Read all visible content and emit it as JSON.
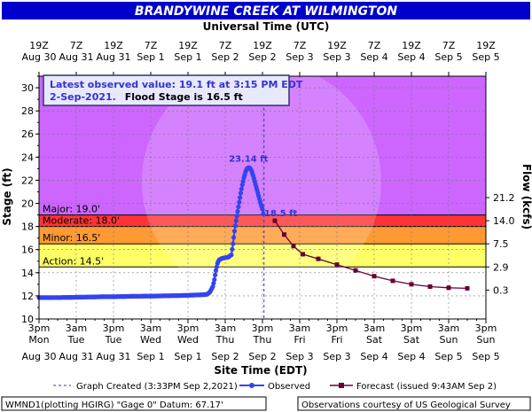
{
  "header": {
    "title": "BRANDYWINE CREEK AT WILMINGTON",
    "top_axis_title": "Universal Time (UTC)"
  },
  "info_box": {
    "line1": "Latest observed value: 19.1 ft at 3:15 PM EDT",
    "line2_date": "2-Sep-2021.",
    "line2_flood": "Flood Stage is 16.5 ft"
  },
  "colors": {
    "title_bg": "#0000cc",
    "major": "#cc66ff",
    "moderate": "#ff3333",
    "minor": "#ff9933",
    "action": "#ffff66",
    "normal": "#ffffff",
    "observed": "#3344ee",
    "forecast": "#660033",
    "info_text": "#3333cc"
  },
  "chart_data": {
    "type": "line",
    "title": "BRANDYWINE CREEK AT WILMINGTON",
    "ylabel": "Stage (ft)",
    "y2label": "Flow (kcfs)",
    "xlabel": "Site Time (EDT)",
    "top_xlabel": "Universal Time (UTC)",
    "ylim": [
      10,
      31
    ],
    "yticks": [
      10,
      12,
      14,
      16,
      18,
      20,
      22,
      24,
      26,
      28,
      30
    ],
    "y2ticks": [
      {
        "stage": 12.5,
        "label": "0.3"
      },
      {
        "stage": 14.5,
        "label": "2.9"
      },
      {
        "stage": 16.5,
        "label": "7.5"
      },
      {
        "stage": 18.5,
        "label": "14.0"
      },
      {
        "stage": 20.5,
        "label": "21.2"
      }
    ],
    "xlim_hours": [
      0,
      144
    ],
    "x_ticks_bottom": [
      {
        "h": 0,
        "top": "3pm",
        "mid": "Mon",
        "bot": "Aug 30"
      },
      {
        "h": 12,
        "top": "3am",
        "mid": "Tue",
        "bot": "Aug 31"
      },
      {
        "h": 24,
        "top": "3pm",
        "mid": "Tue",
        "bot": "Aug 31"
      },
      {
        "h": 36,
        "top": "3am",
        "mid": "Wed",
        "bot": "Sep 1"
      },
      {
        "h": 48,
        "top": "3pm",
        "mid": "Wed",
        "bot": "Sep 1"
      },
      {
        "h": 60,
        "top": "3am",
        "mid": "Thu",
        "bot": "Sep 2"
      },
      {
        "h": 72,
        "top": "3pm",
        "mid": "Thu",
        "bot": "Sep 2"
      },
      {
        "h": 84,
        "top": "3am",
        "mid": "Fri",
        "bot": "Sep 3"
      },
      {
        "h": 96,
        "top": "3pm",
        "mid": "Fri",
        "bot": "Sep 3"
      },
      {
        "h": 108,
        "top": "3am",
        "mid": "Sat",
        "bot": "Sep 4"
      },
      {
        "h": 120,
        "top": "3pm",
        "mid": "Sat",
        "bot": "Sep 4"
      },
      {
        "h": 132,
        "top": "3am",
        "mid": "Sun",
        "bot": "Sep 5"
      },
      {
        "h": 144,
        "top": "3pm",
        "mid": "Sun",
        "bot": "Sep 5"
      }
    ],
    "x_ticks_top": [
      {
        "h": 0,
        "top": "19Z",
        "bot": "Aug 30"
      },
      {
        "h": 12,
        "top": "7Z",
        "bot": "Aug 31"
      },
      {
        "h": 24,
        "top": "19Z",
        "bot": "Aug 31"
      },
      {
        "h": 36,
        "top": "7Z",
        "bot": "Sep 1"
      },
      {
        "h": 48,
        "top": "19Z",
        "bot": "Sep 1"
      },
      {
        "h": 60,
        "top": "7Z",
        "bot": "Sep 2"
      },
      {
        "h": 72,
        "top": "19Z",
        "bot": "Sep 2"
      },
      {
        "h": 84,
        "top": "7Z",
        "bot": "Sep 3"
      },
      {
        "h": 96,
        "top": "19Z",
        "bot": "Sep 3"
      },
      {
        "h": 108,
        "top": "7Z",
        "bot": "Sep 4"
      },
      {
        "h": 120,
        "top": "19Z",
        "bot": "Sep 4"
      },
      {
        "h": 132,
        "top": "7Z",
        "bot": "Sep 5"
      },
      {
        "h": 144,
        "top": "19Z",
        "bot": "Sep 5"
      }
    ],
    "flood_categories": [
      {
        "name": "major",
        "label": "Major: 19.0'",
        "stage": 19.0
      },
      {
        "name": "moderate",
        "label": "Moderate: 18.0'",
        "stage": 18.0
      },
      {
        "name": "minor",
        "label": "Minor: 16.5'",
        "stage": 16.5
      },
      {
        "name": "action",
        "label": "Action: 14.5'",
        "stage": 14.5
      }
    ],
    "graph_created_hours": 72.5,
    "observed": [
      [
        0,
        11.85
      ],
      [
        4,
        11.85
      ],
      [
        8,
        11.86
      ],
      [
        12,
        11.88
      ],
      [
        16,
        11.9
      ],
      [
        20,
        11.92
      ],
      [
        24,
        11.93
      ],
      [
        28,
        11.95
      ],
      [
        32,
        11.97
      ],
      [
        36,
        11.98
      ],
      [
        40,
        12.0
      ],
      [
        44,
        12.02
      ],
      [
        46,
        12.03
      ],
      [
        48,
        12.05
      ],
      [
        50,
        12.07
      ],
      [
        52,
        12.09
      ],
      [
        54,
        12.12
      ],
      [
        55,
        12.3
      ],
      [
        56,
        12.8
      ],
      [
        56.5,
        13.4
      ],
      [
        57,
        14.2
      ],
      [
        57.5,
        14.8
      ],
      [
        58,
        15.1
      ],
      [
        59,
        15.25
      ],
      [
        60,
        15.3
      ],
      [
        61,
        15.35
      ],
      [
        62,
        15.55
      ],
      [
        62.5,
        16.5
      ],
      [
        63,
        17.6
      ],
      [
        63.5,
        18.5
      ],
      [
        64,
        19.3
      ],
      [
        64.5,
        20.1
      ],
      [
        65,
        20.9
      ],
      [
        65.5,
        21.6
      ],
      [
        66,
        22.2
      ],
      [
        66.5,
        22.7
      ],
      [
        67,
        23.0
      ],
      [
        67.5,
        23.1
      ],
      [
        68,
        23.05
      ],
      [
        68.5,
        22.8
      ],
      [
        69,
        22.4
      ],
      [
        69.5,
        21.9
      ],
      [
        70,
        21.4
      ],
      [
        70.5,
        20.9
      ],
      [
        71,
        20.4
      ],
      [
        71.5,
        19.9
      ],
      [
        72,
        19.5
      ],
      [
        72.25,
        19.1
      ]
    ],
    "forecast": [
      [
        76,
        18.5
      ],
      [
        79,
        17.3
      ],
      [
        82,
        16.3
      ],
      [
        85,
        15.6
      ],
      [
        90,
        15.2
      ],
      [
        96,
        14.7
      ],
      [
        102,
        14.2
      ],
      [
        108,
        13.7
      ],
      [
        114,
        13.3
      ],
      [
        120,
        13.0
      ],
      [
        126,
        12.8
      ],
      [
        132,
        12.7
      ],
      [
        138,
        12.65
      ]
    ],
    "annotations": {
      "peak_label": "23.14 ft",
      "peak_at": [
        67.5,
        23.14
      ],
      "forecast_label": "18.5 ft",
      "forecast_at": [
        76,
        18.5
      ]
    }
  },
  "legend": {
    "graph_created": "Graph Created (3:33PM Sep 2,2021)",
    "observed": "Observed",
    "forecast": "Forecast (issued 9:43AM Sep 2)"
  },
  "footer": {
    "datum": "WMND1(plotting HGIRG) \"Gage 0\" Datum: 67.17'",
    "courtesy": "Observations courtesy of US Geological Survey"
  }
}
